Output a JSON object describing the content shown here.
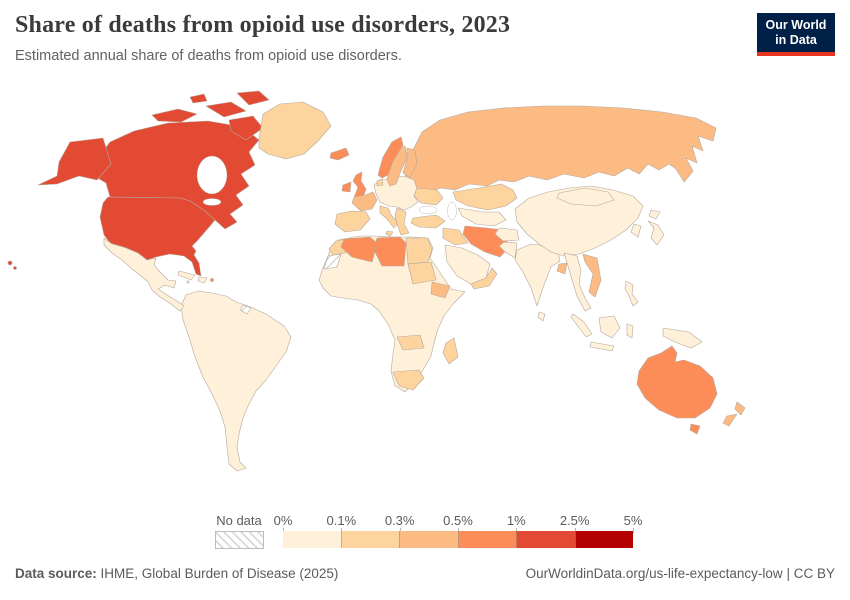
{
  "header": {
    "title": "Share of deaths from opioid use disorders, 2023",
    "subtitle": "Estimated annual share of deaths from opioid use disorders."
  },
  "logo": {
    "line1": "Our World",
    "line2": "in Data",
    "bg_color": "#002147",
    "accent_color": "#e5341f"
  },
  "chart_data": {
    "type": "choropleth",
    "title": "Share of deaths from opioid use disorders, 2023",
    "year": "2023",
    "unit": "%",
    "legend": {
      "no_data_label": "No data",
      "tick_labels": [
        "0%",
        "0.1%",
        "0.3%",
        "0.5%",
        "1%",
        "2.5%",
        "5%"
      ],
      "colors": [
        "#fef0d9",
        "#fdd49e",
        "#fdbb84",
        "#fc8d59",
        "#e34a33",
        "#b30000"
      ],
      "position": "bottom"
    },
    "regions": {
      "canada": 4,
      "united-states": 4,
      "greenland": 1,
      "iceland": 3,
      "mexico": 0,
      "cuba": 0,
      "hispaniola": 0,
      "jamaica": 0,
      "puerto-rico": 3,
      "south-america": 0,
      "french-guiana": "no-data",
      "central-eastern-europe": 0,
      "ukraine": 1,
      "russia": 2,
      "kazakhstan": 1,
      "central-asia": 0,
      "norway": 3,
      "sweden": 2,
      "finland": 2,
      "denmark": 1,
      "ireland": 3,
      "united-kingdom": 3,
      "france": 2,
      "iberia": 1,
      "italy": 1,
      "balkans-greece": 1,
      "turkey": 1,
      "iraq-syria": 1,
      "iran": 3,
      "arabian-peninsula": 0,
      "yemen-oman": 1,
      "afghanistan": 0,
      "pakistan": 0,
      "india": 0,
      "bangladesh": 2,
      "sri-lanka": 0,
      "china": 0,
      "mongolia": 0,
      "korea": 0,
      "japan": 0,
      "mainland-se-asia": 0,
      "vietnam": 2,
      "philippines": 0,
      "indonesia": 0,
      "papua-new-guinea": 0,
      "australia": 3,
      "tasmania": 3,
      "new-zealand": 2,
      "africa": 0,
      "morocco": 1,
      "western-sahara": "no-data",
      "algeria": 3,
      "libya": 3,
      "egypt": 1,
      "sudan": 1,
      "ethiopia": 2,
      "zambia-zimbabwe": 1,
      "south-africa": 1,
      "madagascar": 1
    }
  },
  "footer": {
    "source_prefix": "Data source:",
    "source_text": "IHME, Global Burden of Disease (2025)",
    "link_text": "OurWorldinData.org/us-life-expectancy-low",
    "separator": "|",
    "license": "CC BY"
  }
}
